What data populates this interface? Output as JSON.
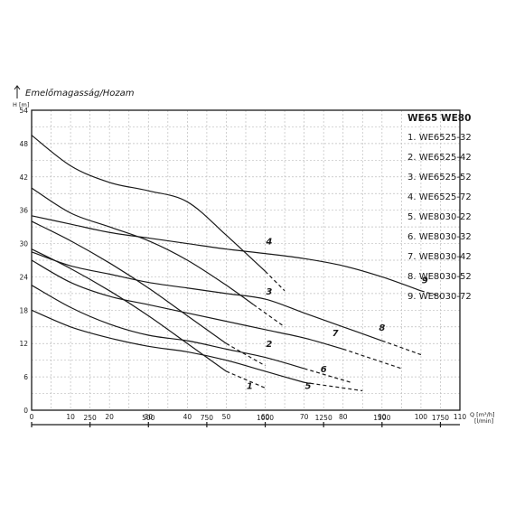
{
  "chart_data": {
    "type": "line",
    "title": "Emelőmagasság/Hozam",
    "ylabel": "H [m]",
    "xlabel": "Q [m³/h]",
    "x2label": "[l/min]",
    "ylim": [
      0,
      54
    ],
    "xlim": [
      0,
      110
    ],
    "y_ticks": [
      "0",
      "6",
      "12",
      "18",
      "24",
      "30",
      "36",
      "42",
      "48",
      "54"
    ],
    "x_ticks": [
      "0",
      "10",
      "20",
      "30",
      "40",
      "50",
      "60",
      "70",
      "80",
      "90",
      "100",
      "110"
    ],
    "x2_ticks": [
      "0",
      "250",
      "500",
      "750",
      "1000",
      "1250",
      "1500",
      "1750"
    ],
    "legend_header": "WE65  WE80",
    "grid": true,
    "series": [
      {
        "name": "WE6525-32",
        "label": "1",
        "solid": [
          [
            0,
            29
          ],
          [
            10,
            25.5
          ],
          [
            20,
            21.5
          ],
          [
            30,
            17
          ],
          [
            40,
            12
          ],
          [
            50,
            7
          ]
        ],
        "dashed": [
          [
            50,
            7
          ],
          [
            60,
            4
          ]
        ],
        "label_pos": [
          56,
          4.5
        ]
      },
      {
        "name": "WE6525-42",
        "label": "2",
        "solid": [
          [
            0,
            34
          ],
          [
            10,
            30.5
          ],
          [
            20,
            26.5
          ],
          [
            30,
            22
          ],
          [
            40,
            17
          ],
          [
            50,
            12
          ]
        ],
        "dashed": [
          [
            50,
            12
          ],
          [
            60,
            8
          ]
        ],
        "label_pos": [
          61,
          12
        ]
      },
      {
        "name": "WE6525-52",
        "label": "3",
        "solid": [
          [
            0,
            40
          ],
          [
            10,
            35.5
          ],
          [
            20,
            33
          ],
          [
            30,
            30.5
          ],
          [
            40,
            27
          ],
          [
            50,
            22.5
          ],
          [
            57,
            19
          ]
        ],
        "dashed": [
          [
            57,
            19
          ],
          [
            65,
            15
          ]
        ],
        "label_pos": [
          61,
          21.5
        ]
      },
      {
        "name": "WE6525-72",
        "label": "4",
        "solid": [
          [
            0,
            49.5
          ],
          [
            10,
            44
          ],
          [
            20,
            41
          ],
          [
            30,
            39.5
          ],
          [
            40,
            37.5
          ],
          [
            50,
            31.5
          ],
          [
            60,
            25
          ]
        ],
        "dashed": [
          [
            60,
            25
          ],
          [
            65,
            21.5
          ]
        ],
        "label_pos": [
          61,
          30.5
        ]
      },
      {
        "name": "WE8030-22",
        "label": "5",
        "solid": [
          [
            0,
            18
          ],
          [
            10,
            15
          ],
          [
            20,
            13
          ],
          [
            30,
            11.5
          ],
          [
            40,
            10.5
          ],
          [
            50,
            9
          ],
          [
            60,
            7
          ],
          [
            70,
            5
          ]
        ],
        "dashed": [
          [
            70,
            5
          ],
          [
            85,
            3.5
          ]
        ],
        "label_pos": [
          71,
          4.5
        ]
      },
      {
        "name": "WE8030-32",
        "label": "6",
        "solid": [
          [
            0,
            22.5
          ],
          [
            10,
            18.5
          ],
          [
            20,
            15.5
          ],
          [
            30,
            13.5
          ],
          [
            40,
            12.5
          ],
          [
            50,
            11
          ],
          [
            60,
            9.5
          ],
          [
            70,
            7.5
          ]
        ],
        "dashed": [
          [
            70,
            7.5
          ],
          [
            82,
            5
          ]
        ],
        "label_pos": [
          75,
          7.5
        ]
      },
      {
        "name": "WE8030-42",
        "label": "7",
        "solid": [
          [
            0,
            27
          ],
          [
            10,
            23
          ],
          [
            20,
            20.5
          ],
          [
            30,
            19
          ],
          [
            40,
            17.5
          ],
          [
            50,
            16
          ],
          [
            60,
            14.5
          ],
          [
            70,
            13
          ],
          [
            80,
            11
          ]
        ],
        "dashed": [
          [
            80,
            11
          ],
          [
            95,
            7.5
          ]
        ],
        "label_pos": [
          78,
          14
        ]
      },
      {
        "name": "WE8030-52",
        "label": "8",
        "solid": [
          [
            0,
            28.5
          ],
          [
            10,
            26
          ],
          [
            20,
            24.5
          ],
          [
            30,
            23
          ],
          [
            40,
            22
          ],
          [
            50,
            21
          ],
          [
            60,
            20
          ],
          [
            70,
            17.5
          ],
          [
            80,
            15
          ],
          [
            90,
            12.5
          ]
        ],
        "dashed": [
          [
            90,
            12.5
          ],
          [
            100,
            10
          ]
        ],
        "label_pos": [
          90,
          15
        ]
      },
      {
        "name": "WE8030-72",
        "label": "9",
        "solid": [
          [
            0,
            35
          ],
          [
            10,
            33.5
          ],
          [
            20,
            32
          ],
          [
            30,
            31
          ],
          [
            40,
            30
          ],
          [
            50,
            29
          ],
          [
            60,
            28.2
          ],
          [
            70,
            27.3
          ],
          [
            80,
            26
          ],
          [
            90,
            24
          ],
          [
            100,
            21.5
          ]
        ],
        "dashed": [
          [
            100,
            21.5
          ],
          [
            105,
            20.5
          ]
        ],
        "label_pos": [
          101,
          23.5
        ]
      }
    ]
  }
}
